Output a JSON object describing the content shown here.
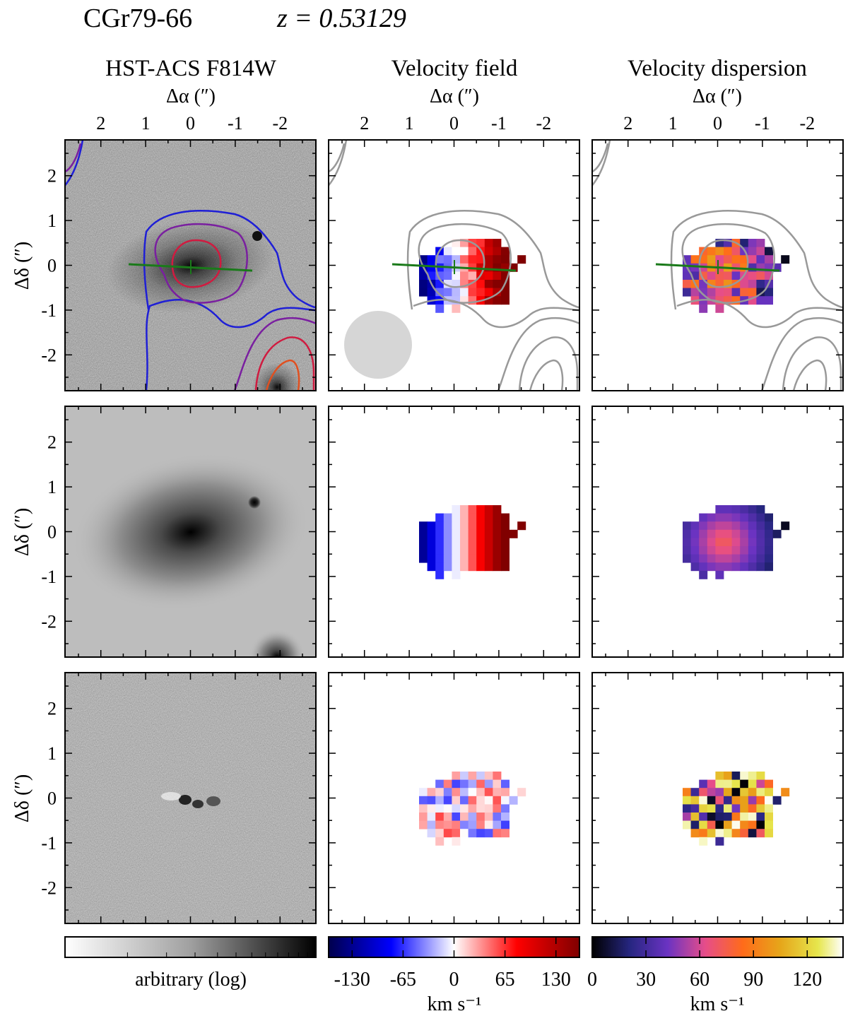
{
  "header": {
    "object": "CGr79-66",
    "redshift_label": "z = 0.53129"
  },
  "columns": [
    {
      "title": "HST-ACS F814W",
      "axis_label": "Δα (″)"
    },
    {
      "title": "Velocity field",
      "axis_label": "Δα (″)"
    },
    {
      "title": "Velocity dispersion",
      "axis_label": "Δα (″)"
    }
  ],
  "row_axis_label": "Δδ (″)",
  "chart_data": {
    "type": "heatmap",
    "x_ticks": [
      "2",
      "1",
      "0",
      "-1",
      "-2"
    ],
    "y_ticks": [
      "2",
      "1",
      "0",
      "-1",
      "-2"
    ],
    "xlim": [
      2.8,
      -2.8
    ],
    "ylim": [
      -2.8,
      2.8
    ],
    "rows": [
      "observed",
      "model",
      "residual"
    ],
    "colorbars": [
      {
        "panel": "image",
        "label": "arbitrary (log)",
        "ticks": [],
        "cmap": "gray_r"
      },
      {
        "panel": "velocity",
        "label": "km s⁻¹",
        "ticks": [
          "-130",
          "-65",
          "0",
          "65",
          "130"
        ],
        "range": [
          -160,
          160
        ],
        "cmap": "seismic"
      },
      {
        "panel": "dispersion",
        "label": "km s⁻¹",
        "ticks": [
          "0",
          "30",
          "60",
          "90",
          "120"
        ],
        "range": [
          0,
          140
        ],
        "cmap": "CMRmap"
      }
    ]
  },
  "colors": {
    "contour_outer": "#1f1fd6",
    "contour_mid": "#7a1fa0",
    "contour_inner": "#d01b40",
    "contour_core": "#e05020",
    "major_axis": "#1a7a1a",
    "psf": "#d6d6d6",
    "contour_gray": "#999999"
  }
}
